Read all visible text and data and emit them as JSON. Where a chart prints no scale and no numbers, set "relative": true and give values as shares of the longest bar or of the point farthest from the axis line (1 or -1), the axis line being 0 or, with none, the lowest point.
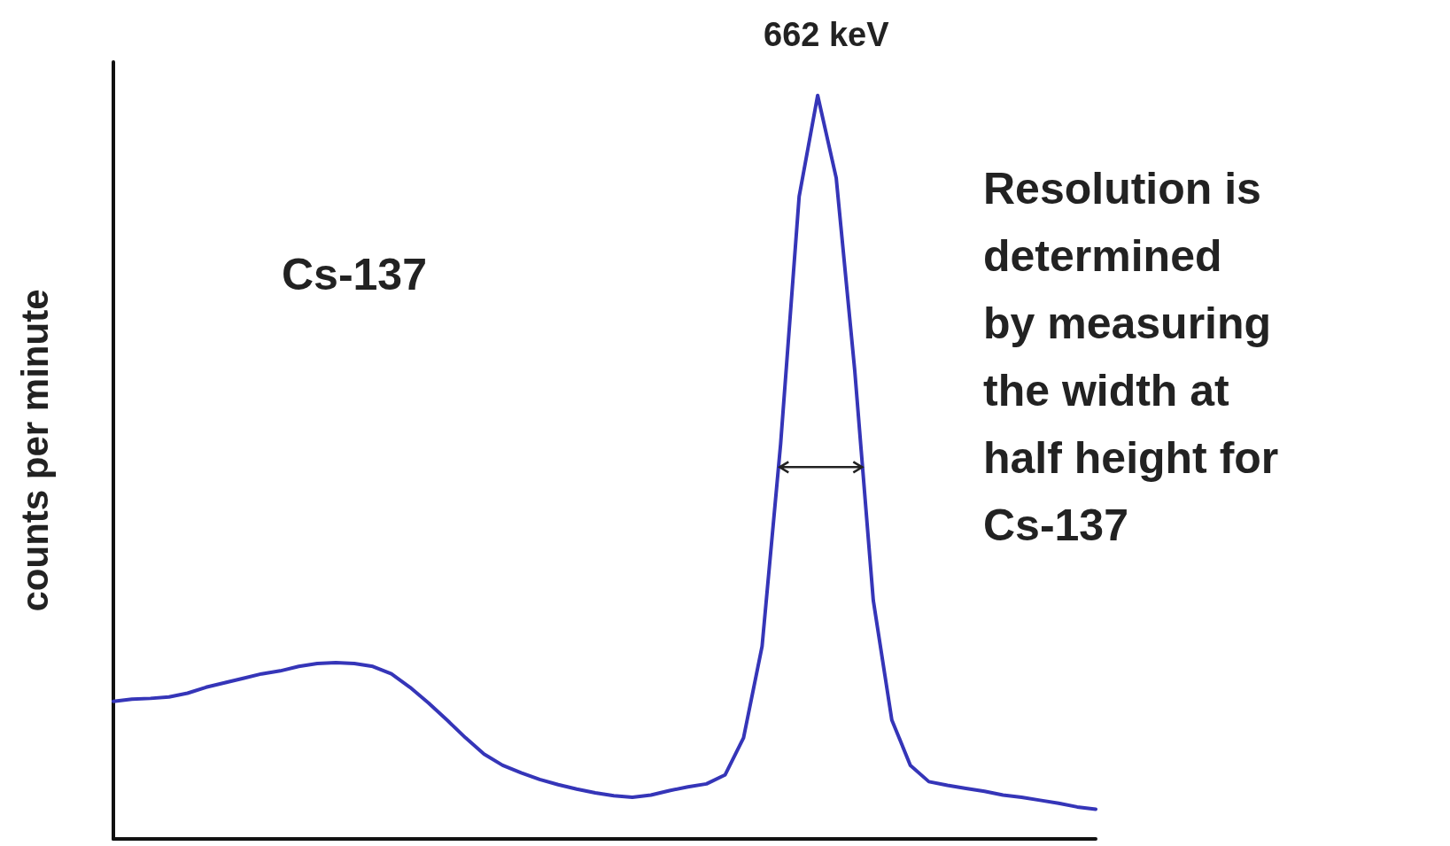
{
  "chart_data": {
    "type": "line",
    "relative": true,
    "ylabel": "counts per minute",
    "categories": [
      null,
      null,
      null,
      null,
      null,
      null,
      null,
      null,
      null,
      null,
      null,
      null,
      null,
      null,
      null,
      null,
      null,
      null,
      null,
      null,
      null,
      null,
      null,
      null,
      null,
      null,
      null,
      null,
      null,
      null,
      null,
      null,
      null,
      null,
      null,
      null,
      null,
      null,
      null,
      null,
      null,
      null,
      null,
      null,
      null,
      null,
      null,
      null,
      null,
      null,
      null,
      null,
      null,
      null
    ],
    "series": [
      {
        "color": "#3535b8",
        "values": [
          0.185,
          0.188,
          0.189,
          0.191,
          0.196,
          0.204,
          0.21,
          0.216,
          0.222,
          0.226,
          0.232,
          0.236,
          0.237,
          0.236,
          0.232,
          0.222,
          0.204,
          0.183,
          0.16,
          0.136,
          0.114,
          0.099,
          0.089,
          0.08,
          0.073,
          0.067,
          0.062,
          0.058,
          0.056,
          0.059,
          0.065,
          0.07,
          0.074,
          0.086,
          0.136,
          0.259,
          0.531,
          0.864,
          1,
          0.889,
          0.63,
          0.321,
          0.16,
          0.099,
          0.077,
          0.072,
          0.068,
          0.064,
          0.059,
          0.056,
          0.052,
          0.048,
          0.043,
          0.04
        ]
      }
    ],
    "annotations": [
      "662 keV",
      "Cs-137",
      "Resolution is\ndetermined\nby measuring\nthe width at\nhalf height for\nCs-137"
    ],
    "marker": "none",
    "line_style": "solid"
  }
}
